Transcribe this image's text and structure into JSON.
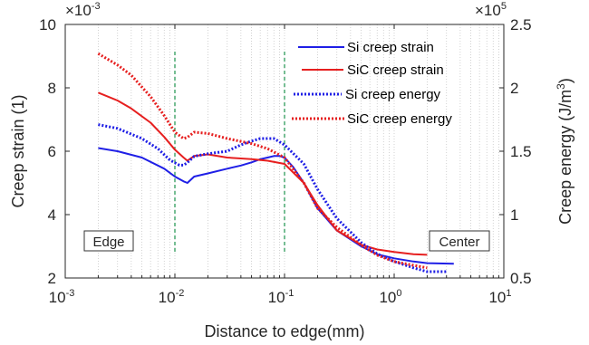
{
  "chart_data": {
    "type": "line",
    "xlabel": "Distance to edge(mm)",
    "ylabel_left": "Creep strain (1)",
    "ylabel_right": "Creep energy (J/m",
    "ylabel_right_sup": "3",
    "ylabel_right_close": ")",
    "xscale": "log",
    "xlim": [
      0.001,
      10
    ],
    "ylim_left": [
      2,
      10
    ],
    "ylim_right": [
      0.5,
      2.5
    ],
    "left_exponent": {
      "base": "×10",
      "exp": "-3"
    },
    "right_exponent": {
      "base": "×10",
      "exp": "5"
    },
    "x_ticks": [
      {
        "base": "10",
        "exp": "-3"
      },
      {
        "base": "10",
        "exp": "-2"
      },
      {
        "base": "10",
        "exp": "-1"
      },
      {
        "base": "10",
        "exp": "0"
      },
      {
        "base": "10",
        "exp": "1"
      }
    ],
    "y_ticks_left": [
      "2",
      "4",
      "6",
      "8",
      "10"
    ],
    "y_ticks_right": [
      "0.5",
      "1",
      "1.5",
      "2",
      "2.5"
    ],
    "grid": "x-minor-dotted",
    "legend_position": "top-right",
    "annotations": {
      "left_box": "Edge",
      "right_box": "Center"
    },
    "vlines": [
      0.01,
      0.1
    ],
    "series": [
      {
        "name": "Si creep strain",
        "axis": "left",
        "color": "#1f1fe6",
        "style": "solid",
        "x": [
          0.002,
          0.003,
          0.005,
          0.008,
          0.01,
          0.012,
          0.013,
          0.015,
          0.02,
          0.03,
          0.04,
          0.05,
          0.06,
          0.07,
          0.08,
          0.09,
          0.1,
          0.12,
          0.15,
          0.2,
          0.3,
          0.5,
          0.7,
          1.0,
          1.5,
          2.0,
          3.5
        ],
        "y": [
          6.1,
          6.0,
          5.8,
          5.45,
          5.2,
          5.05,
          5.0,
          5.2,
          5.3,
          5.45,
          5.55,
          5.65,
          5.75,
          5.8,
          5.85,
          5.85,
          5.8,
          5.5,
          5.0,
          4.2,
          3.5,
          3.0,
          2.75,
          2.62,
          2.52,
          2.47,
          2.45
        ]
      },
      {
        "name": "SiC creep strain",
        "axis": "left",
        "color": "#e61f1f",
        "style": "solid",
        "x": [
          0.002,
          0.003,
          0.004,
          0.006,
          0.008,
          0.01,
          0.012,
          0.013,
          0.015,
          0.02,
          0.03,
          0.05,
          0.07,
          0.1,
          0.15,
          0.2,
          0.3,
          0.5,
          0.7,
          1.0,
          1.5,
          2.0
        ],
        "y": [
          7.85,
          7.6,
          7.35,
          6.9,
          6.45,
          6.05,
          5.8,
          5.7,
          5.85,
          5.9,
          5.8,
          5.75,
          5.7,
          5.6,
          5.0,
          4.3,
          3.5,
          3.05,
          2.9,
          2.82,
          2.75,
          2.73
        ]
      },
      {
        "name": "Si creep energy",
        "axis": "right",
        "color": "#1f1fe6",
        "style": "dotted",
        "x": [
          0.002,
          0.003,
          0.005,
          0.007,
          0.009,
          0.011,
          0.012,
          0.013,
          0.015,
          0.02,
          0.03,
          0.04,
          0.05,
          0.06,
          0.07,
          0.08,
          0.1,
          0.15,
          0.2,
          0.3,
          0.5,
          0.7,
          1.0,
          1.5,
          2.0,
          3.0
        ],
        "y": [
          1.71,
          1.68,
          1.6,
          1.52,
          1.43,
          1.39,
          1.39,
          1.41,
          1.46,
          1.48,
          1.5,
          1.55,
          1.58,
          1.6,
          1.6,
          1.6,
          1.55,
          1.4,
          1.2,
          0.97,
          0.78,
          0.69,
          0.63,
          0.58,
          0.55,
          0.55
        ]
      },
      {
        "name": "SiC creep energy",
        "axis": "right",
        "color": "#e61f1f",
        "style": "dotted",
        "x": [
          0.002,
          0.003,
          0.004,
          0.006,
          0.008,
          0.01,
          0.012,
          0.013,
          0.015,
          0.02,
          0.03,
          0.05,
          0.07,
          0.1,
          0.15,
          0.2,
          0.3,
          0.5,
          0.7,
          1.0,
          1.5,
          2.0
        ],
        "y": [
          2.27,
          2.18,
          2.1,
          1.93,
          1.78,
          1.65,
          1.6,
          1.61,
          1.65,
          1.64,
          1.6,
          1.56,
          1.52,
          1.45,
          1.25,
          1.05,
          0.9,
          0.76,
          0.68,
          0.63,
          0.6,
          0.58
        ]
      }
    ]
  }
}
